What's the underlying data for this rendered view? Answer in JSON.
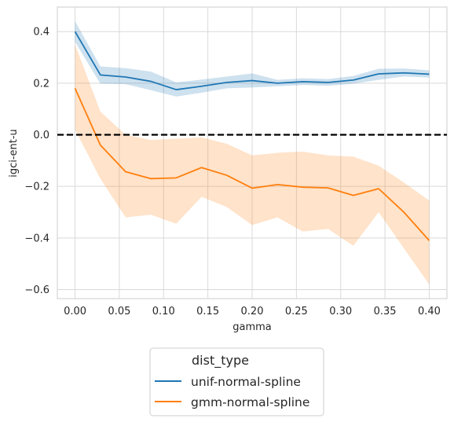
{
  "chart_data": {
    "type": "line",
    "xlabel": "gamma",
    "ylabel": "igci-ent-u",
    "xlim": [
      -0.02,
      0.42
    ],
    "ylim": [
      -0.635,
      0.495
    ],
    "xticks": [
      0.0,
      0.05,
      0.1,
      0.15,
      0.2,
      0.25,
      0.3,
      0.35,
      0.4
    ],
    "xtick_labels": [
      "0.00",
      "0.05",
      "0.10",
      "0.15",
      "0.20",
      "0.25",
      "0.30",
      "0.35",
      "0.40"
    ],
    "yticks": [
      0.4,
      0.2,
      0.0,
      -0.2,
      -0.4,
      -0.6
    ],
    "ytick_labels": [
      "0.4",
      "0.2",
      "0.0",
      "−0.2",
      "−0.4",
      "−0.6"
    ],
    "grid": true,
    "hline": {
      "y": 0.0,
      "style": "dashed",
      "color": "#000000"
    },
    "x": [
      0.0,
      0.0286,
      0.0571,
      0.0857,
      0.1143,
      0.1429,
      0.1714,
      0.2,
      0.2286,
      0.2571,
      0.2857,
      0.3143,
      0.3429,
      0.3714,
      0.4
    ],
    "series": [
      {
        "name": "unif-normal-spline",
        "color": "#1f77b4",
        "values": [
          0.4,
          0.232,
          0.224,
          0.207,
          0.175,
          0.188,
          0.203,
          0.21,
          0.2,
          0.206,
          0.203,
          0.212,
          0.236,
          0.24,
          0.235
        ],
        "lower": [
          0.36,
          0.198,
          0.196,
          0.173,
          0.148,
          0.163,
          0.18,
          0.183,
          0.188,
          0.193,
          0.19,
          0.198,
          0.213,
          0.226,
          0.222
        ],
        "upper": [
          0.44,
          0.265,
          0.258,
          0.245,
          0.203,
          0.214,
          0.226,
          0.238,
          0.213,
          0.219,
          0.216,
          0.228,
          0.256,
          0.257,
          0.25
        ]
      },
      {
        "name": "gmm-normal-spline",
        "color": "#ff7f0e",
        "values": [
          0.18,
          -0.04,
          -0.143,
          -0.17,
          -0.167,
          -0.127,
          -0.157,
          -0.207,
          -0.193,
          -0.203,
          -0.206,
          -0.235,
          -0.209,
          -0.3,
          -0.41
        ],
        "lower": [
          0.02,
          -0.17,
          -0.32,
          -0.31,
          -0.345,
          -0.24,
          -0.28,
          -0.35,
          -0.32,
          -0.375,
          -0.365,
          -0.43,
          -0.3,
          -0.44,
          -0.58
        ],
        "upper": [
          0.35,
          0.09,
          0.0,
          -0.02,
          -0.015,
          -0.01,
          -0.035,
          -0.08,
          -0.07,
          -0.065,
          -0.08,
          -0.085,
          -0.12,
          -0.185,
          -0.255
        ]
      }
    ],
    "legend": {
      "title": "dist_type",
      "placement": "below",
      "entries": [
        "unif-normal-spline",
        "gmm-normal-spline"
      ]
    }
  }
}
